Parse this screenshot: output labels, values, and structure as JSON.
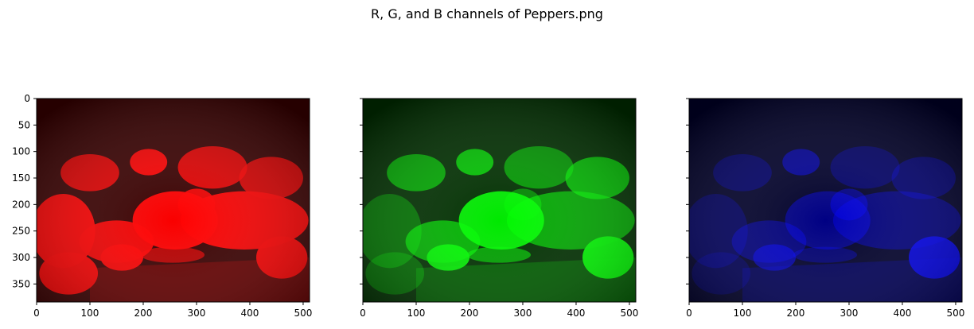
{
  "chart_data": {
    "type": "image-grid",
    "title": "R, G, and B channels of Peppers.png",
    "image_width": 512,
    "image_height": 384,
    "x_ticks": [
      0,
      100,
      200,
      300,
      400,
      500
    ],
    "y_ticks": [
      0,
      50,
      100,
      150,
      200,
      250,
      300,
      350
    ],
    "panels": [
      {
        "channel": "R",
        "color": "#ff0000",
        "y_tick_labels": true
      },
      {
        "channel": "G",
        "color": "#00ff00",
        "y_tick_labels": false
      },
      {
        "channel": "B",
        "color": "#0000ff",
        "y_tick_labels": false
      }
    ]
  }
}
